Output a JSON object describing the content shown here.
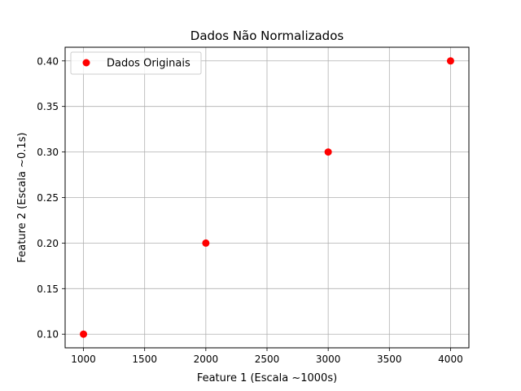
{
  "chart_data": {
    "type": "scatter",
    "title": "Dados Não Normalizados",
    "xlabel": "Feature 1 (Escala ~1000s)",
    "ylabel": "Feature 2 (Escala ~0.1s)",
    "xlim": [
      850,
      4150
    ],
    "ylim": [
      0.085,
      0.415
    ],
    "xticks": [
      1000,
      1500,
      2000,
      2500,
      3000,
      3500,
      4000
    ],
    "yticks": [
      0.1,
      0.15,
      0.2,
      0.25,
      0.3,
      0.35,
      0.4
    ],
    "xtick_labels": [
      "1000",
      "1500",
      "2000",
      "2500",
      "3000",
      "3500",
      "4000"
    ],
    "ytick_labels": [
      "0.10",
      "0.15",
      "0.20",
      "0.25",
      "0.30",
      "0.35",
      "0.40"
    ],
    "grid": true,
    "legend_position": "top-left",
    "series": [
      {
        "name": "Dados Originais",
        "color": "#ff0000",
        "marker": "circle",
        "x": [
          1000,
          2000,
          3000,
          4000
        ],
        "y": [
          0.1,
          0.2,
          0.3,
          0.4
        ]
      }
    ]
  }
}
